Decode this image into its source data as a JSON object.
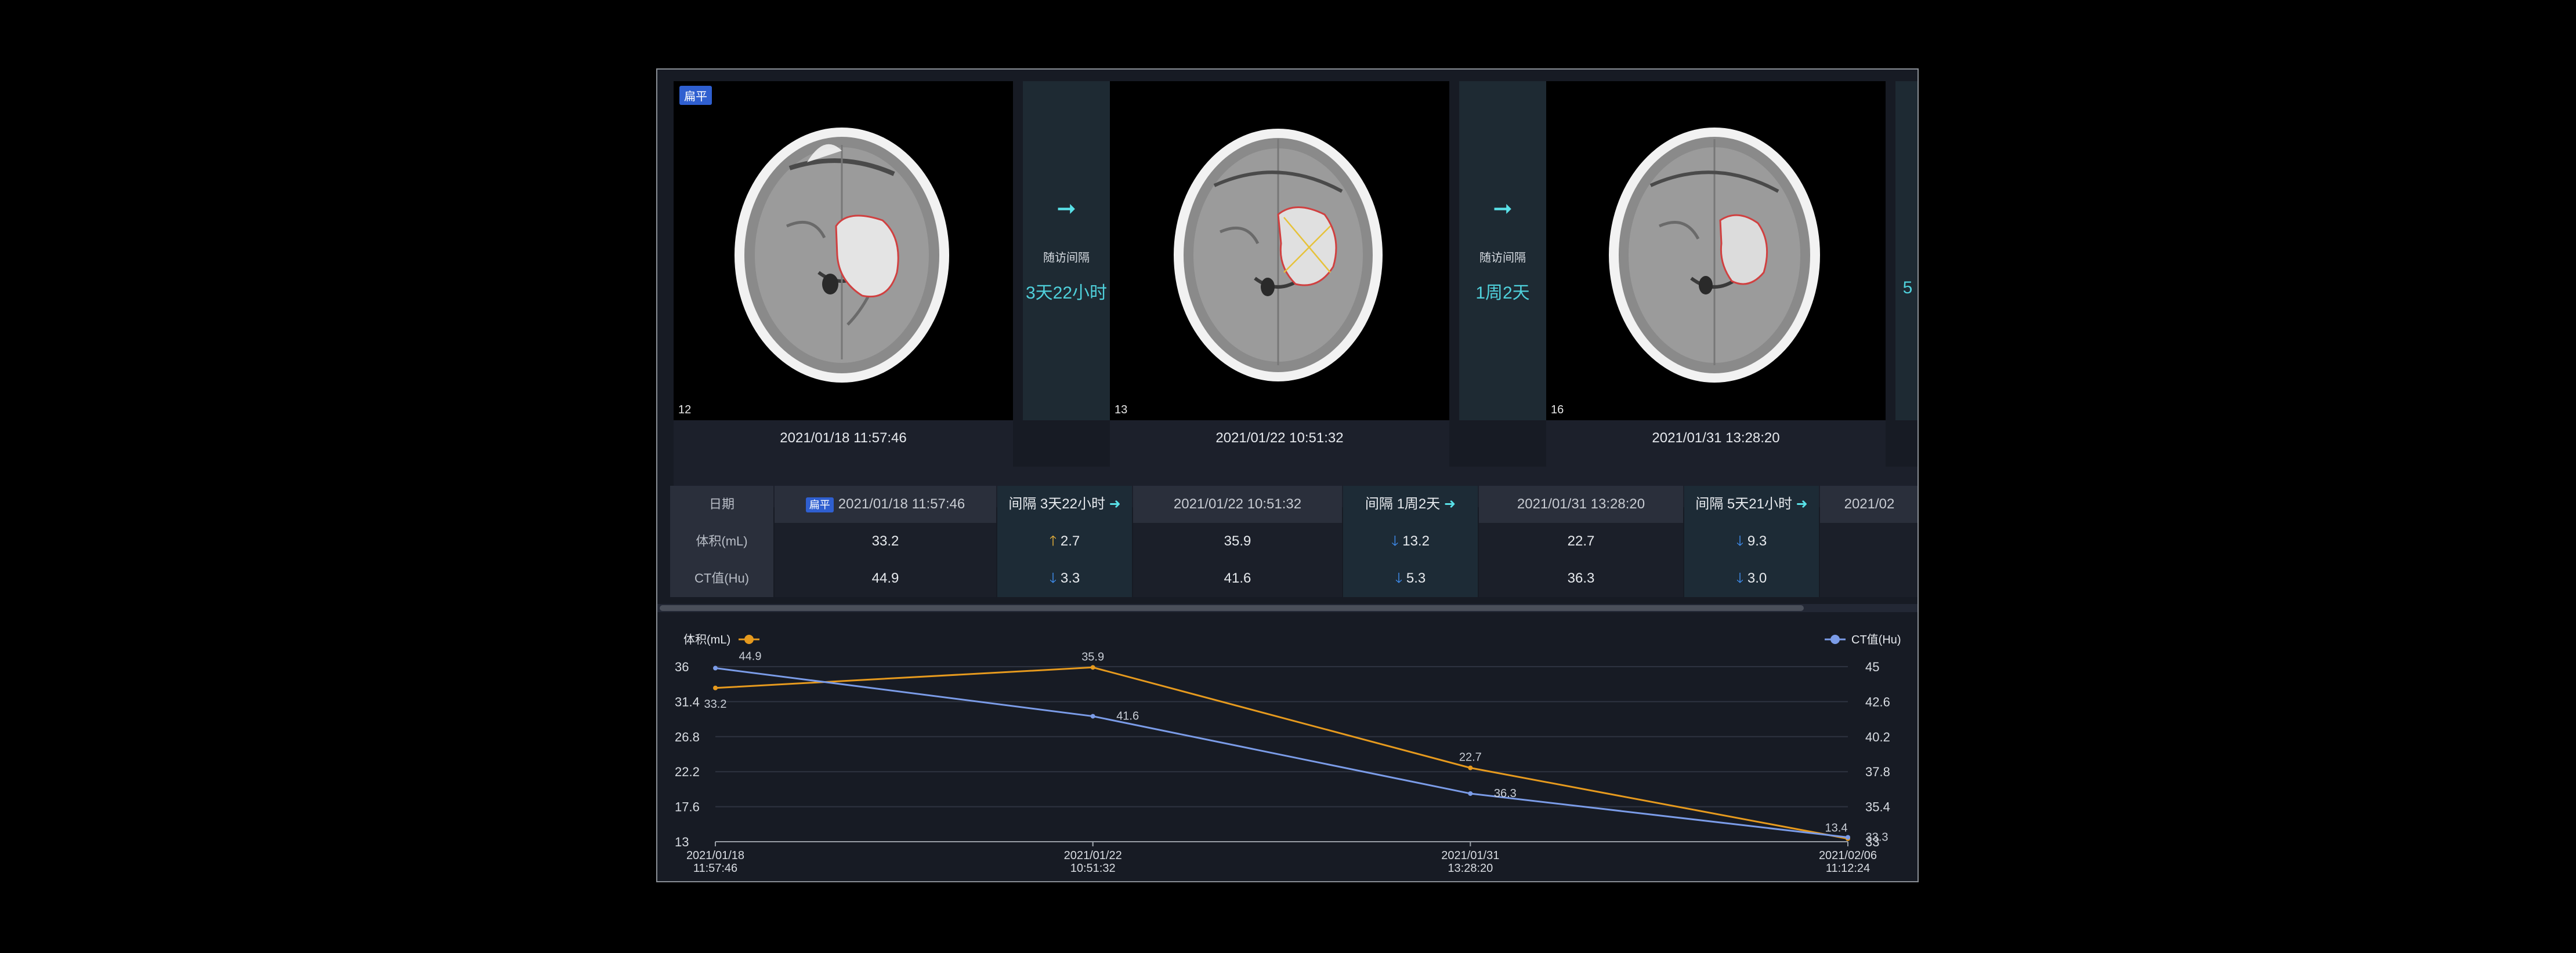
{
  "strip": {
    "badge": "扁平",
    "interval_label": "随访间隔",
    "panels": [
      {
        "slice": "12",
        "datetime": "2021/01/18 11:57:46"
      },
      {
        "slice": "13",
        "datetime": "2021/01/22 10:51:32"
      },
      {
        "slice": "16",
        "datetime": "2021/01/31 13:28:20"
      }
    ],
    "gaps": [
      {
        "value": "3天22小时"
      },
      {
        "value": "1周2天"
      },
      {
        "value": "5"
      }
    ]
  },
  "table": {
    "row_labels": [
      "日期",
      "体积(mL)",
      "CT值(Hu)"
    ],
    "badge": "扁平",
    "columns": [
      {
        "kind": "date",
        "date": "2021/01/18 11:57:46",
        "volume": "33.2",
        "ct": "44.9"
      },
      {
        "kind": "diff",
        "interval": "间隔 3天22小时",
        "vol_change": "2.7",
        "vol_dir": "up",
        "ct_change": "3.3",
        "ct_dir": "down"
      },
      {
        "kind": "date",
        "date": "2021/01/22 10:51:32",
        "volume": "35.9",
        "ct": "41.6"
      },
      {
        "kind": "diff",
        "interval": "间隔 1周2天",
        "vol_change": "13.2",
        "vol_dir": "down",
        "ct_change": "5.3",
        "ct_dir": "down"
      },
      {
        "kind": "date",
        "date": "2021/01/31 13:28:20",
        "volume": "22.7",
        "ct": "36.3"
      },
      {
        "kind": "diff",
        "interval": "间隔 5天21小时",
        "vol_change": "9.3",
        "vol_dir": "down",
        "ct_change": "3.0",
        "ct_dir": "down"
      },
      {
        "kind": "date",
        "date": "2021/02",
        "volume": "",
        "ct": ""
      }
    ]
  },
  "chart_data": {
    "type": "line",
    "x": [
      "2021/01/18 11:57:46",
      "2021/01/22 10:51:32",
      "2021/01/31 13:28:20",
      "2021/02/06 11:12:24"
    ],
    "series": [
      {
        "name": "体积(mL)",
        "axis": "left",
        "color": "#e69a1e",
        "values": [
          33.2,
          35.9,
          22.7,
          13.4
        ]
      },
      {
        "name": "CT值(Hu)",
        "axis": "right",
        "color": "#7b9ce8",
        "values": [
          44.9,
          41.6,
          36.3,
          33.3
        ]
      }
    ],
    "left_ylim": [
      13,
      36
    ],
    "left_ticks": [
      "36",
      "31.4",
      "26.8",
      "22.2",
      "17.6",
      "13"
    ],
    "right_ylim": [
      33,
      45
    ],
    "right_ticks": [
      "45",
      "42.6",
      "40.2",
      "37.8",
      "35.4",
      "33"
    ],
    "grid": true,
    "legend": "top-left and top-right"
  },
  "colors": {
    "accent": "#2f5fd0",
    "cyan": "#4fd1dc",
    "up": "#e8b13a",
    "down": "#3f8ef0"
  }
}
